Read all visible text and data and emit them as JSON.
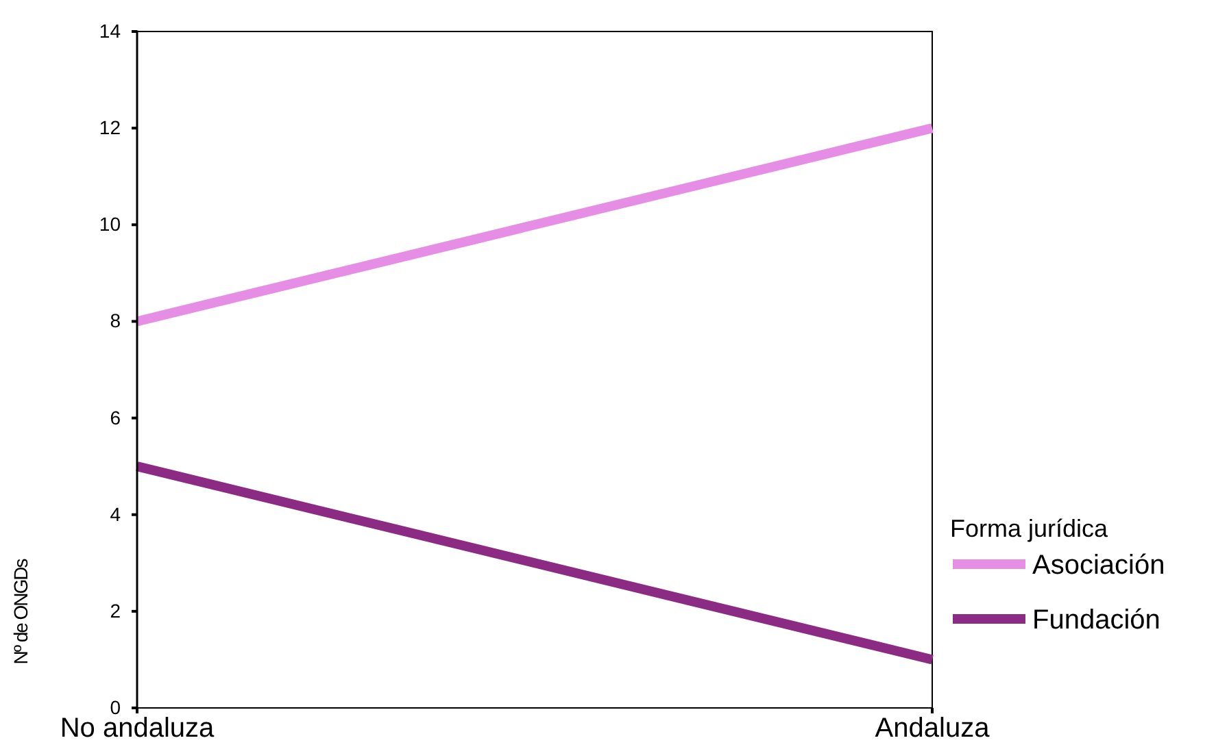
{
  "chart_data": {
    "type": "line",
    "categories": [
      "No andaluza",
      "Andaluza"
    ],
    "ylabel": "Nº de ONGDs",
    "legend_title": "Forma jurídica",
    "legend": "right",
    "grid": false,
    "marker": "none",
    "line_style": "solid",
    "ylim": [
      0,
      14
    ],
    "yticks": [
      0,
      2,
      4,
      6,
      8,
      10,
      12,
      14
    ],
    "series": [
      {
        "name": "Asociación",
        "color": "#e68ee6",
        "values": [
          8,
          12
        ]
      },
      {
        "name": "Fundación",
        "color": "#8b2b84",
        "values": [
          5,
          1
        ]
      }
    ]
  }
}
